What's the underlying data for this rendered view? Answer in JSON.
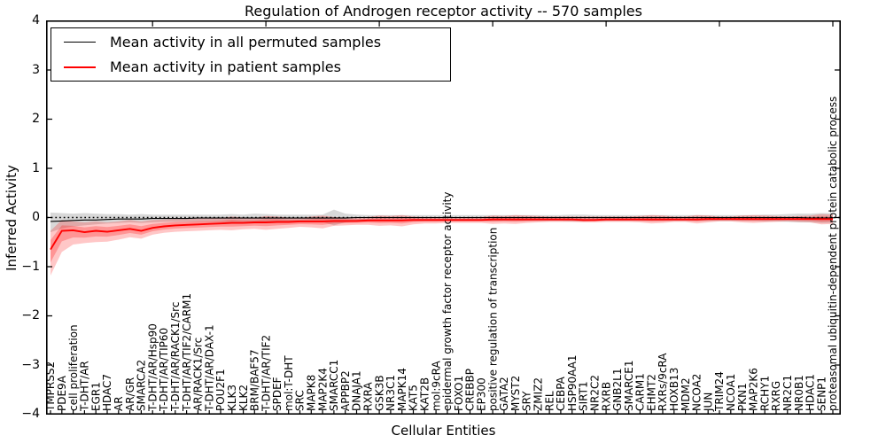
{
  "figure": {
    "title": "Regulation of Androgen receptor activity -- 570 samples",
    "xlabel": "Cellular Entities",
    "ylabel": "Inferred Activity"
  },
  "legend": {
    "entries": [
      {
        "label": "Mean activity in all permuted samples",
        "color": "#000000"
      },
      {
        "label": "Mean activity in patient samples",
        "color": "#ff0000"
      }
    ],
    "position": "upper left"
  },
  "chart_data": {
    "type": "line",
    "title": "Regulation of Androgen receptor activity -- 570 samples",
    "xlabel": "Cellular Entities",
    "ylabel": "Inferred Activity",
    "ylim": [
      -4,
      4
    ],
    "yticks": [
      -4,
      -3,
      -2,
      -1,
      0,
      1,
      2,
      3,
      4
    ],
    "grid": false,
    "legend_position": "upper left",
    "categories": [
      "TMPRSS2",
      "PDE9A",
      "cell proliferation",
      "T-DHT/AR",
      "EGR1",
      "HDAC7",
      "AR",
      "AR/GR",
      "SMARCA2",
      "T-DHT/AR/Hsp90",
      "T-DHT/AR/TIP60",
      "T-DHT/AR/RACK1/Src",
      "T-DHT/AR/TIF2/CARM1",
      "AR/RACK1/Src",
      "T-DHT/AR/DAX-1",
      "POU2F1",
      "KLK3",
      "KLK2",
      "BRM/BAF57",
      "T-DHT/AR/TIF2",
      "SPDEF",
      "mol:T-DHT",
      "SRC",
      "MAPK8",
      "MAP2K4",
      "SMARCC1",
      "APPBP2",
      "DNAJA1",
      "RXRA",
      "GSK3B",
      "NR3C1",
      "MAPK14",
      "KAT5",
      "KAT2B",
      "mol:9cRA",
      "epidermal growth factor receptor activity",
      "FOXO1",
      "CREBBP",
      "EP300",
      "positive regulation of transcription",
      "GATA2",
      "MYST2",
      "SRY",
      "ZMIZ2",
      "REL",
      "CEBPA",
      "HSP90AA1",
      "SIRT1",
      "NR2C2",
      "RXRB",
      "GNB2L1",
      "SMARCE1",
      "CARM1",
      "EHMT2",
      "RXRs/9cRA",
      "HOXB13",
      "MDM2",
      "NCOA2",
      "JUN",
      "TRIM24",
      "NCOA1",
      "PKN1",
      "MAP2K6",
      "RCHY1",
      "RXRG",
      "NR2C1",
      "NR0B1",
      "HDAC1",
      "SENP1",
      "proteasomal ubiquitin-dependent protein catabolic process"
    ],
    "series": [
      {
        "name": "Mean activity in all permuted samples",
        "color": "#000000",
        "values": [
          -0.08,
          -0.07,
          -0.06,
          -0.05,
          -0.05,
          -0.04,
          -0.03,
          -0.03,
          -0.03,
          -0.02,
          -0.02,
          -0.02,
          -0.02,
          -0.01,
          -0.01,
          -0.01,
          -0.01,
          -0.01,
          -0.01,
          -0.01,
          -0.01,
          -0.01,
          -0.01,
          -0.01,
          -0.01,
          -0.01,
          -0.01,
          0,
          0,
          0,
          0,
          0,
          0,
          0,
          0,
          0,
          0,
          0,
          0,
          0,
          0,
          0,
          0,
          0,
          0,
          0,
          0,
          0,
          0,
          0,
          0,
          0,
          0,
          0,
          0,
          0,
          0,
          0,
          0,
          0,
          0,
          0,
          0,
          0,
          0,
          0,
          0,
          -0.01,
          -0.01,
          -0.01
        ]
      },
      {
        "name": "Mean activity in patient samples",
        "color": "#ff0000",
        "values": [
          -0.65,
          -0.27,
          -0.26,
          -0.3,
          -0.27,
          -0.29,
          -0.26,
          -0.23,
          -0.27,
          -0.21,
          -0.18,
          -0.16,
          -0.15,
          -0.14,
          -0.13,
          -0.12,
          -0.11,
          -0.11,
          -0.1,
          -0.1,
          -0.09,
          -0.09,
          -0.08,
          -0.08,
          -0.08,
          -0.07,
          -0.07,
          -0.07,
          -0.06,
          -0.06,
          -0.06,
          -0.06,
          -0.05,
          -0.05,
          -0.05,
          -0.05,
          -0.05,
          -0.05,
          -0.05,
          -0.04,
          -0.04,
          -0.04,
          -0.04,
          -0.04,
          -0.04,
          -0.04,
          -0.04,
          -0.05,
          -0.05,
          -0.04,
          -0.04,
          -0.04,
          -0.04,
          -0.04,
          -0.04,
          -0.04,
          -0.04,
          -0.04,
          -0.03,
          -0.03,
          -0.03,
          -0.03,
          -0.03,
          -0.03,
          -0.03,
          -0.03,
          -0.03,
          -0.03,
          -0.03,
          -0.03
        ]
      }
    ],
    "bands": [
      {
        "name": "permuted samples range",
        "color": "#999999",
        "opacity": 0.38,
        "upper": [
          0.1,
          0.09,
          0.08,
          0.09,
          0.08,
          0.07,
          0.07,
          0.06,
          0.07,
          0.06,
          0.06,
          0.06,
          0.06,
          0.06,
          0.06,
          0.06,
          0.07,
          0.06,
          0.08,
          0.07,
          0.06,
          0.06,
          0.06,
          0.06,
          0.06,
          0.16,
          0.08,
          0.06,
          0.05,
          0.05,
          0.05,
          0.05,
          0.05,
          0.05,
          0.05,
          0.05,
          0.05,
          0.05,
          0.05,
          0.05,
          0.05,
          0.05,
          0.05,
          0.05,
          0.05,
          0.05,
          0.06,
          0.06,
          0.05,
          0.05,
          0.05,
          0.05,
          0.05,
          0.05,
          0.05,
          0.05,
          0.05,
          0.05,
          0.05,
          0.05,
          0.05,
          0.05,
          0.05,
          0.06,
          0.06,
          0.07,
          0.08,
          0.08,
          0.09,
          0.09
        ],
        "lower": [
          -0.3,
          -0.22,
          -0.18,
          -0.16,
          -0.14,
          -0.12,
          -0.11,
          -0.1,
          -0.11,
          -0.1,
          -0.09,
          -0.09,
          -0.09,
          -0.09,
          -0.09,
          -0.09,
          -0.1,
          -0.09,
          -0.11,
          -0.1,
          -0.09,
          -0.08,
          -0.08,
          -0.08,
          -0.09,
          -0.16,
          -0.1,
          -0.08,
          -0.07,
          -0.07,
          -0.07,
          -0.07,
          -0.07,
          -0.07,
          -0.07,
          -0.07,
          -0.07,
          -0.07,
          -0.07,
          -0.07,
          -0.07,
          -0.07,
          -0.07,
          -0.07,
          -0.07,
          -0.07,
          -0.08,
          -0.08,
          -0.07,
          -0.07,
          -0.07,
          -0.07,
          -0.07,
          -0.07,
          -0.07,
          -0.07,
          -0.07,
          -0.07,
          -0.07,
          -0.07,
          -0.07,
          -0.07,
          -0.07,
          -0.08,
          -0.08,
          -0.09,
          -0.1,
          -0.1,
          -0.11,
          -0.11
        ]
      },
      {
        "name": "patient samples range",
        "color": "#ff0000",
        "opacity": 0.22,
        "upper": [
          -0.27,
          -0.05,
          -0.08,
          -0.1,
          -0.08,
          -0.1,
          -0.08,
          -0.05,
          -0.08,
          -0.05,
          -0.04,
          -0.03,
          -0.03,
          -0.02,
          -0.02,
          -0.01,
          0.02,
          0.0,
          -0.01,
          0.03,
          0.02,
          0.0,
          -0.01,
          0.02,
          0.04,
          0.01,
          0.0,
          0.0,
          0.01,
          0.04,
          0.03,
          0.05,
          0.02,
          0.01,
          0.01,
          0.0,
          0.0,
          0.01,
          0.01,
          0.04,
          0.03,
          0.05,
          0.04,
          0.03,
          0.02,
          0.02,
          0.02,
          0.02,
          0.02,
          0.02,
          0.02,
          0.02,
          0.03,
          0.05,
          0.04,
          0.02,
          0.02,
          0.05,
          0.04,
          0.02,
          0.02,
          0.04,
          0.05,
          0.04,
          0.03,
          0.02,
          0.03,
          0.04,
          0.07,
          0.06
        ],
        "lower": [
          -1.18,
          -0.7,
          -0.55,
          -0.52,
          -0.5,
          -0.49,
          -0.45,
          -0.4,
          -0.43,
          -0.35,
          -0.31,
          -0.29,
          -0.28,
          -0.27,
          -0.26,
          -0.25,
          -0.26,
          -0.24,
          -0.23,
          -0.25,
          -0.23,
          -0.21,
          -0.19,
          -0.2,
          -0.22,
          -0.17,
          -0.16,
          -0.15,
          -0.15,
          -0.17,
          -0.16,
          -0.18,
          -0.14,
          -0.12,
          -0.12,
          -0.11,
          -0.11,
          -0.11,
          -0.11,
          -0.13,
          -0.12,
          -0.13,
          -0.11,
          -0.1,
          -0.09,
          -0.09,
          -0.09,
          -0.1,
          -0.1,
          -0.09,
          -0.09,
          -0.09,
          -0.1,
          -0.12,
          -0.11,
          -0.09,
          -0.09,
          -0.12,
          -0.1,
          -0.08,
          -0.08,
          -0.1,
          -0.11,
          -0.1,
          -0.09,
          -0.08,
          -0.09,
          -0.1,
          -0.14,
          -0.13
        ]
      }
    ],
    "reference_line": {
      "y": 0,
      "style": "dotted",
      "color": "#000000"
    }
  }
}
